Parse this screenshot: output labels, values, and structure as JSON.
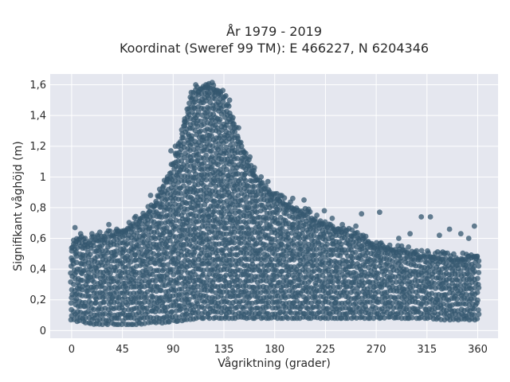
{
  "chart_data": {
    "type": "scatter",
    "title": "År 1979 - 2019",
    "subtitle": "Koordinat (Sweref 99 TM): E 466227, N 6204346",
    "xlabel": "Vågriktning (grader)",
    "ylabel": "Signifikant våghöjd (m)",
    "xlim": [
      -19,
      378
    ],
    "ylim": [
      -0.05,
      1.67
    ],
    "x_ticks": [
      0,
      45,
      90,
      135,
      180,
      225,
      270,
      315,
      360
    ],
    "x_tick_labels": [
      "0",
      "45",
      "90",
      "135",
      "180",
      "225",
      "270",
      "315",
      "360"
    ],
    "y_ticks": [
      0,
      0.2,
      0.4,
      0.6,
      0.8,
      1.0,
      1.2,
      1.4,
      1.6
    ],
    "y_tick_labels": [
      "0",
      "0,2",
      "0,4",
      "0,6",
      "0,8",
      "1",
      "1,2",
      "1,4",
      "1,6"
    ],
    "grid": true,
    "legend": "none",
    "marker_color": "#34576f",
    "plot_background": "#e5e7ef",
    "series": [
      {
        "envelope_x": [
          0,
          5,
          10,
          15,
          20,
          30,
          40,
          45,
          50,
          60,
          70,
          80,
          90,
          95,
          100,
          105,
          110,
          115,
          120,
          125,
          130,
          135,
          140,
          145,
          150,
          160,
          170,
          180,
          190,
          200,
          210,
          225,
          240,
          255,
          270,
          285,
          300,
          315,
          330,
          345,
          360
        ],
        "envelope_y_max": [
          0.55,
          0.58,
          0.57,
          0.55,
          0.58,
          0.6,
          0.63,
          0.64,
          0.66,
          0.72,
          0.78,
          0.9,
          1.08,
          1.2,
          1.36,
          1.48,
          1.55,
          1.58,
          1.59,
          1.58,
          1.56,
          1.52,
          1.42,
          1.32,
          1.2,
          1.04,
          0.92,
          0.87,
          0.82,
          0.78,
          0.74,
          0.68,
          0.64,
          0.6,
          0.55,
          0.52,
          0.5,
          0.48,
          0.47,
          0.46,
          0.48
        ],
        "envelope_y_min": [
          0.07,
          0.06,
          0.05,
          0.05,
          0.04,
          0.04,
          0.04,
          0.04,
          0.04,
          0.04,
          0.05,
          0.05,
          0.06,
          0.06,
          0.07,
          0.07,
          0.08,
          0.08,
          0.08,
          0.08,
          0.08,
          0.08,
          0.08,
          0.08,
          0.08,
          0.08,
          0.08,
          0.08,
          0.08,
          0.08,
          0.08,
          0.08,
          0.08,
          0.08,
          0.08,
          0.08,
          0.08,
          0.08,
          0.07,
          0.07,
          0.07
        ]
      }
    ],
    "outliers": [
      [
        3,
        0.67
      ],
      [
        8,
        0.63
      ],
      [
        12,
        0.6
      ],
      [
        18,
        0.63
      ],
      [
        25,
        0.64
      ],
      [
        33,
        0.69
      ],
      [
        40,
        0.66
      ],
      [
        48,
        0.64
      ],
      [
        70,
        0.88
      ],
      [
        78,
        0.92
      ],
      [
        85,
        1.0
      ],
      [
        88,
        1.17
      ],
      [
        92,
        1.2
      ],
      [
        100,
        1.36
      ],
      [
        106,
        1.55
      ],
      [
        110,
        1.6
      ],
      [
        119,
        1.6
      ],
      [
        127,
        1.55
      ],
      [
        140,
        1.5
      ],
      [
        148,
        1.32
      ],
      [
        158,
        1.13
      ],
      [
        162,
        1.06
      ],
      [
        168,
        1.0
      ],
      [
        174,
        0.97
      ],
      [
        185,
        0.88
      ],
      [
        196,
        0.86
      ],
      [
        206,
        0.85
      ],
      [
        210,
        0.79
      ],
      [
        224,
        0.78
      ],
      [
        231,
        0.73
      ],
      [
        240,
        0.69
      ],
      [
        252,
        0.68
      ],
      [
        257,
        0.76
      ],
      [
        273,
        0.77
      ],
      [
        290,
        0.6
      ],
      [
        300,
        0.63
      ],
      [
        310,
        0.74
      ],
      [
        318,
        0.74
      ],
      [
        326,
        0.62
      ],
      [
        335,
        0.66
      ],
      [
        345,
        0.63
      ],
      [
        352,
        0.6
      ],
      [
        357,
        0.68
      ]
    ]
  }
}
